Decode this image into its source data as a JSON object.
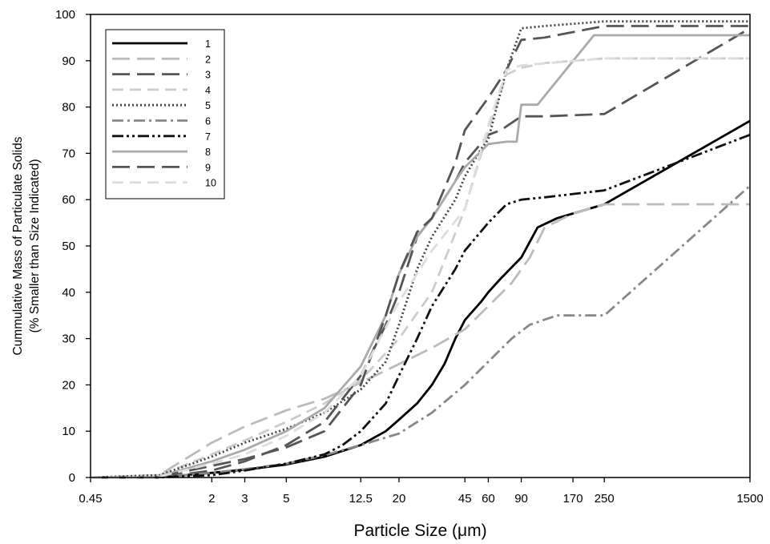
{
  "chart_data": {
    "type": "line",
    "xlabel": "Particle Size (μm)",
    "ylabel_lines": [
      "Cummulative Mass of Particulate Solids",
      "(% Smaller than Size Indicated)"
    ],
    "x_scale": "log",
    "xlim": [
      0.45,
      1500
    ],
    "ylim": [
      0,
      100
    ],
    "x_ticks": [
      0.45,
      2,
      3,
      5,
      12.5,
      20,
      45,
      60,
      90,
      170,
      250,
      1500
    ],
    "x_tick_labels": [
      "0.45",
      "2",
      "3",
      "5",
      "12.5",
      "20",
      "45",
      "60",
      "90",
      "170",
      "250",
      "1500"
    ],
    "y_ticks": [
      0,
      10,
      20,
      30,
      40,
      50,
      60,
      70,
      80,
      90,
      100
    ],
    "y_tick_labels": [
      "0",
      "10",
      "20",
      "30",
      "40",
      "50",
      "60",
      "70",
      "80",
      "90",
      "100"
    ],
    "grid": false,
    "legend_position": "top-left",
    "series": [
      {
        "name": "1",
        "color": "#000000",
        "dash": "solid",
        "points": [
          [
            0.45,
            0
          ],
          [
            1,
            0
          ],
          [
            2,
            1
          ],
          [
            3,
            1.7
          ],
          [
            5,
            2.8
          ],
          [
            8,
            4.5
          ],
          [
            12.5,
            7
          ],
          [
            17,
            10
          ],
          [
            20,
            12.5
          ],
          [
            25,
            16
          ],
          [
            30,
            20
          ],
          [
            35,
            24.5
          ],
          [
            40,
            30
          ],
          [
            45,
            34
          ],
          [
            55,
            38
          ],
          [
            60,
            40
          ],
          [
            70,
            43
          ],
          [
            90,
            47.5
          ],
          [
            110,
            54
          ],
          [
            140,
            56
          ],
          [
            170,
            57
          ],
          [
            250,
            59
          ],
          [
            1500,
            77
          ]
        ]
      },
      {
        "name": "2",
        "color": "#bbbbbb",
        "dash": "long-dash",
        "points": [
          [
            0.45,
            0
          ],
          [
            1.05,
            0.5
          ],
          [
            1.2,
            2
          ],
          [
            2,
            7.5
          ],
          [
            3,
            11
          ],
          [
            5,
            14.5
          ],
          [
            8,
            17
          ],
          [
            12.5,
            20.5
          ],
          [
            20,
            24.5
          ],
          [
            30,
            28
          ],
          [
            45,
            32
          ],
          [
            60,
            37
          ],
          [
            80,
            42
          ],
          [
            100,
            47.5
          ],
          [
            120,
            54
          ],
          [
            170,
            57
          ],
          [
            250,
            59
          ],
          [
            1500,
            59
          ]
        ]
      },
      {
        "name": "3",
        "color": "#555555",
        "dash": "long-dash",
        "points": [
          [
            0.45,
            0
          ],
          [
            1.05,
            0
          ],
          [
            2,
            1.5
          ],
          [
            3,
            3.5
          ],
          [
            5,
            7
          ],
          [
            8,
            12
          ],
          [
            12.5,
            22
          ],
          [
            17,
            33
          ],
          [
            20,
            40
          ],
          [
            25,
            52
          ],
          [
            30,
            56
          ],
          [
            40,
            64
          ],
          [
            45,
            68
          ],
          [
            60,
            74
          ],
          [
            70,
            75
          ],
          [
            90,
            78
          ],
          [
            120,
            78
          ],
          [
            250,
            78.5
          ],
          [
            1500,
            97
          ]
        ]
      },
      {
        "name": "4",
        "color": "#cccccc",
        "dash": "dash",
        "points": [
          [
            0.45,
            0
          ],
          [
            1.05,
            0.5
          ],
          [
            2,
            5
          ],
          [
            3,
            8
          ],
          [
            5,
            12
          ],
          [
            8,
            16
          ],
          [
            12.5,
            21
          ],
          [
            20,
            30
          ],
          [
            30,
            40
          ],
          [
            45,
            58
          ],
          [
            60,
            75
          ],
          [
            75,
            87
          ],
          [
            90,
            88.5
          ],
          [
            120,
            89.5
          ],
          [
            250,
            90.5
          ],
          [
            1500,
            90.5
          ]
        ]
      },
      {
        "name": "5",
        "color": "#444444",
        "dash": "dot",
        "points": [
          [
            0.45,
            0
          ],
          [
            1.05,
            0.5
          ],
          [
            2,
            4.5
          ],
          [
            3,
            7.5
          ],
          [
            5,
            10.5
          ],
          [
            8,
            14
          ],
          [
            12.5,
            19
          ],
          [
            17,
            25
          ],
          [
            20,
            33
          ],
          [
            25,
            45
          ],
          [
            30,
            52
          ],
          [
            40,
            60
          ],
          [
            45,
            65
          ],
          [
            55,
            71
          ],
          [
            60,
            73
          ],
          [
            75,
            88
          ],
          [
            90,
            97
          ],
          [
            120,
            97.5
          ],
          [
            250,
            98.5
          ],
          [
            1500,
            98.5
          ]
        ]
      },
      {
        "name": "6",
        "color": "#888888",
        "dash": "dash-dot",
        "points": [
          [
            0.45,
            0
          ],
          [
            1,
            0
          ],
          [
            2,
            1
          ],
          [
            3,
            1.8
          ],
          [
            5,
            3
          ],
          [
            8,
            4.8
          ],
          [
            12.5,
            7
          ],
          [
            20,
            9.5
          ],
          [
            30,
            14
          ],
          [
            45,
            20
          ],
          [
            60,
            25
          ],
          [
            80,
            30
          ],
          [
            100,
            33
          ],
          [
            140,
            35
          ],
          [
            250,
            35
          ],
          [
            1500,
            63
          ]
        ]
      },
      {
        "name": "7",
        "color": "#111111",
        "dash": "dash-dot-dot",
        "points": [
          [
            0.45,
            0
          ],
          [
            1,
            0
          ],
          [
            2,
            0.5
          ],
          [
            3,
            1.5
          ],
          [
            5,
            3
          ],
          [
            8,
            5
          ],
          [
            10,
            7
          ],
          [
            12.5,
            10
          ],
          [
            17,
            16
          ],
          [
            20,
            22
          ],
          [
            25,
            30
          ],
          [
            30,
            37
          ],
          [
            40,
            45
          ],
          [
            45,
            49
          ],
          [
            60,
            55
          ],
          [
            75,
            59
          ],
          [
            90,
            60
          ],
          [
            120,
            60.5
          ],
          [
            250,
            62
          ],
          [
            1500,
            74
          ]
        ]
      },
      {
        "name": "8",
        "color": "#aaaaaa",
        "dash": "solid",
        "points": [
          [
            0.45,
            0
          ],
          [
            1,
            0
          ],
          [
            2,
            3.5
          ],
          [
            3,
            6
          ],
          [
            5,
            10
          ],
          [
            8,
            15
          ],
          [
            12.5,
            24
          ],
          [
            17,
            35
          ],
          [
            20,
            44
          ],
          [
            25,
            52
          ],
          [
            30,
            56
          ],
          [
            40,
            64
          ],
          [
            45,
            67
          ],
          [
            60,
            72
          ],
          [
            75,
            72.5
          ],
          [
            85,
            72.5
          ],
          [
            90,
            80.5
          ],
          [
            110,
            80.5
          ],
          [
            220,
            95.5
          ],
          [
            1500,
            95.5
          ]
        ]
      },
      {
        "name": "9",
        "color": "#555555",
        "dash": "long-dash",
        "points": [
          [
            0.45,
            0
          ],
          [
            1,
            0
          ],
          [
            2,
            2.5
          ],
          [
            3,
            4
          ],
          [
            5,
            6.5
          ],
          [
            8,
            10
          ],
          [
            12.5,
            20
          ],
          [
            17,
            35
          ],
          [
            20,
            44
          ],
          [
            25,
            53
          ],
          [
            30,
            56
          ],
          [
            40,
            68
          ],
          [
            45,
            75
          ],
          [
            60,
            82
          ],
          [
            75,
            88
          ],
          [
            90,
            94.5
          ],
          [
            120,
            95
          ],
          [
            250,
            97.5
          ],
          [
            1500,
            97.5
          ]
        ]
      },
      {
        "name": "10",
        "color": "#dddddd",
        "dash": "dash",
        "points": [
          [
            0.45,
            0
          ],
          [
            1,
            0
          ],
          [
            2,
            3
          ],
          [
            3,
            5
          ],
          [
            5,
            9
          ],
          [
            8,
            14
          ],
          [
            12.5,
            22
          ],
          [
            20,
            38
          ],
          [
            30,
            49
          ],
          [
            45,
            58
          ],
          [
            60,
            76
          ],
          [
            75,
            88
          ],
          [
            90,
            89
          ],
          [
            250,
            90.5
          ],
          [
            1500,
            90.5
          ]
        ]
      }
    ]
  }
}
